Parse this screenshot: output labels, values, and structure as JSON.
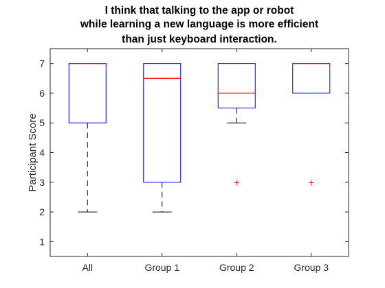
{
  "chart_data": {
    "type": "box",
    "title": [
      "I think that talking to the app or robot",
      "while learning a new language is more efficient",
      "than just keyboard interaction."
    ],
    "xlabel": "",
    "ylabel": "Participant Score",
    "categories": [
      "All",
      "Group 1",
      "Group 2",
      "Group 3"
    ],
    "ylim": [
      0.5,
      7.5
    ],
    "yticks": [
      1,
      2,
      3,
      4,
      5,
      6,
      7
    ],
    "grid": false,
    "boxes": [
      {
        "whisker_low": 2,
        "q1": 5,
        "median": 7,
        "q3": 7,
        "whisker_high": 7,
        "outliers": []
      },
      {
        "whisker_low": 2,
        "q1": 3,
        "median": 6.5,
        "q3": 7,
        "whisker_high": 7,
        "outliers": []
      },
      {
        "whisker_low": 5,
        "q1": 5.5,
        "median": 6,
        "q3": 7,
        "whisker_high": 7,
        "outliers": [
          3
        ]
      },
      {
        "whisker_low": 6,
        "q1": 6,
        "median": 7,
        "q3": 7,
        "whisker_high": 7,
        "outliers": [
          3
        ]
      }
    ],
    "colors": {
      "box": "#0000ff",
      "median": "#ff0000",
      "whisker": "#000000",
      "outlier": "#ff0000",
      "axis": "#262626"
    }
  }
}
